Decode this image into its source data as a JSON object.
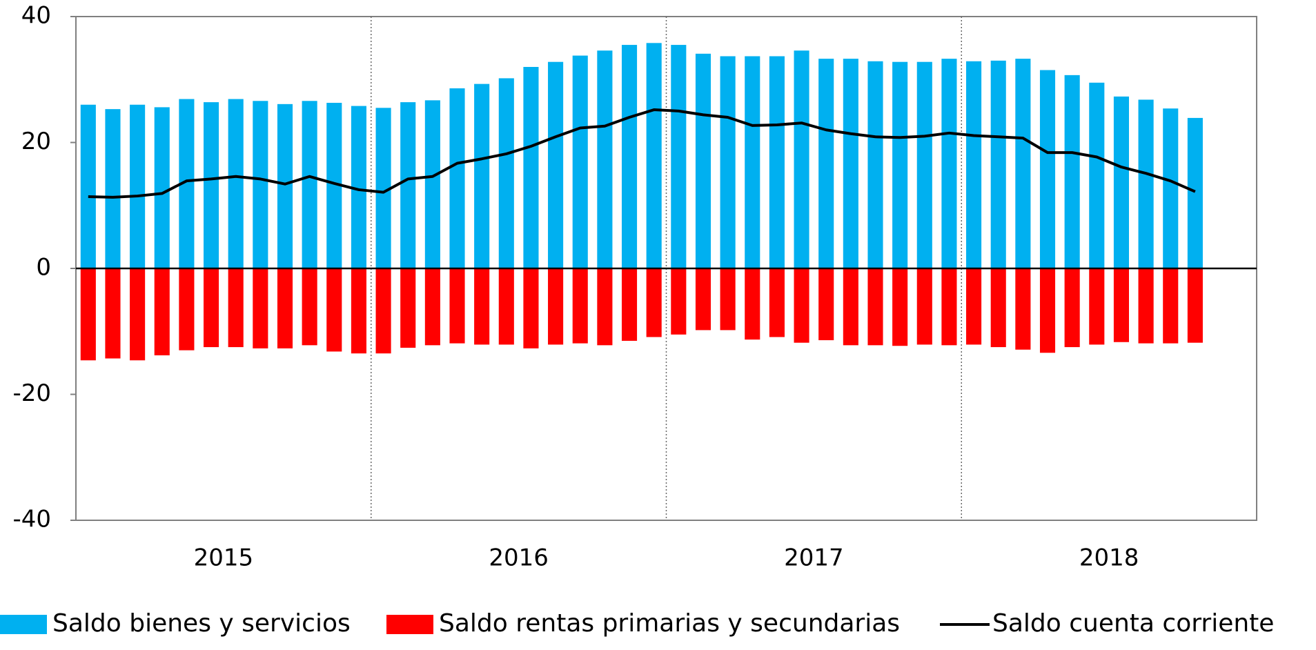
{
  "chart_data": {
    "type": "bar",
    "x_groups": [
      "2015",
      "2016",
      "2017",
      "2018"
    ],
    "categories": [
      null,
      null,
      null,
      null,
      null,
      null,
      null,
      null,
      null,
      null,
      null,
      null,
      null,
      null,
      null,
      null,
      null,
      null,
      null,
      null,
      null,
      null,
      null,
      null,
      null,
      null,
      null,
      null,
      null,
      null,
      null,
      null,
      null,
      null,
      null,
      null,
      null,
      null,
      null,
      null,
      null,
      null,
      null,
      null,
      null,
      null
    ],
    "series": [
      {
        "name": "Saldo bienes y servicios",
        "color": "#00b0f0",
        "kind": "bar",
        "values": [
          26.0,
          25.3,
          26.0,
          25.6,
          26.9,
          26.4,
          26.9,
          26.6,
          26.1,
          26.6,
          26.3,
          25.8,
          25.5,
          26.4,
          26.7,
          28.6,
          29.3,
          30.2,
          32.0,
          32.8,
          33.8,
          34.6,
          35.5,
          35.8,
          35.5,
          34.1,
          33.7,
          33.7,
          33.7,
          34.6,
          33.3,
          33.3,
          32.9,
          32.8,
          32.8,
          33.3,
          32.9,
          33.0,
          33.3,
          31.5,
          30.7,
          29.5,
          27.3,
          26.8,
          25.4,
          23.9
        ]
      },
      {
        "name": "Saldo rentas primarias y secundarias",
        "color": "#ff0000",
        "kind": "bar",
        "values": [
          -14.6,
          -14.3,
          -14.6,
          -13.8,
          -13.0,
          -12.5,
          -12.5,
          -12.7,
          -12.7,
          -12.2,
          -13.2,
          -13.5,
          -13.5,
          -12.6,
          -12.2,
          -11.9,
          -12.1,
          -12.1,
          -12.7,
          -12.1,
          -11.9,
          -12.2,
          -11.5,
          -10.9,
          -10.5,
          -9.8,
          -9.8,
          -11.3,
          -10.9,
          -11.8,
          -11.4,
          -12.2,
          -12.2,
          -12.3,
          -12.1,
          -12.2,
          -12.1,
          -12.5,
          -12.9,
          -13.4,
          -12.5,
          -12.1,
          -11.7,
          -11.9,
          -11.9,
          -11.8
        ]
      },
      {
        "name": "Saldo cuenta corriente",
        "color": "#000000",
        "kind": "line",
        "values": [
          11.4,
          11.3,
          11.5,
          11.9,
          13.9,
          14.2,
          14.6,
          14.2,
          13.4,
          14.6,
          13.5,
          12.5,
          12.1,
          14.2,
          14.6,
          16.7,
          17.4,
          18.2,
          19.4,
          20.9,
          22.3,
          22.6,
          24.0,
          25.2,
          25.0,
          24.4,
          24.0,
          22.7,
          22.8,
          23.1,
          22.0,
          21.4,
          20.9,
          20.8,
          21.0,
          21.5,
          21.1,
          20.9,
          20.7,
          18.4,
          18.4,
          17.7,
          16.1,
          15.1,
          13.9,
          12.2
        ]
      }
    ],
    "ylim": [
      -40,
      40
    ],
    "yticks": [
      -40,
      -20,
      0,
      20,
      40
    ],
    "legend": "bottom"
  }
}
